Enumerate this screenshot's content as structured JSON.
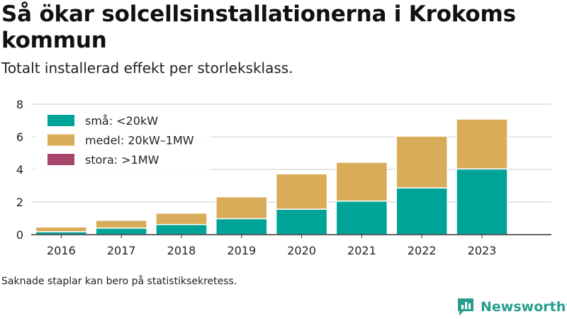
{
  "title": "Så ökar solcellsinstallationerna i Krokoms kommun",
  "subtitle": "Totalt installerad effekt per storleksklass.",
  "footnote": "Saknade staplar kan bero på statistiksekretess.",
  "brand": {
    "name": "Newsworthy",
    "icon": "newsworthy-logo-icon",
    "color": "#2a9d8f"
  },
  "chart_data": {
    "type": "bar",
    "stacked": true,
    "categories": [
      "2016",
      "2017",
      "2018",
      "2019",
      "2020",
      "2021",
      "2022",
      "2023"
    ],
    "series": [
      {
        "name": "små: <20kW",
        "color": "#00a398",
        "values": [
          0.18,
          0.4,
          0.62,
          0.98,
          1.56,
          2.06,
          2.87,
          4.03
        ]
      },
      {
        "name": "medel: 20kW–1MW",
        "color": "#d9ac5a",
        "values": [
          0.29,
          0.48,
          0.7,
          1.34,
          2.17,
          2.38,
          3.17,
          3.06
        ]
      },
      {
        "name": "stora: >1MW",
        "color": "#a8456b",
        "values": [
          0,
          0,
          0,
          0,
          0,
          0,
          0,
          0
        ]
      }
    ],
    "ylim": [
      0,
      8
    ],
    "yticks": [
      "0",
      "2",
      "4",
      "6",
      "8"
    ],
    "grid": true,
    "legend": "top-left"
  }
}
